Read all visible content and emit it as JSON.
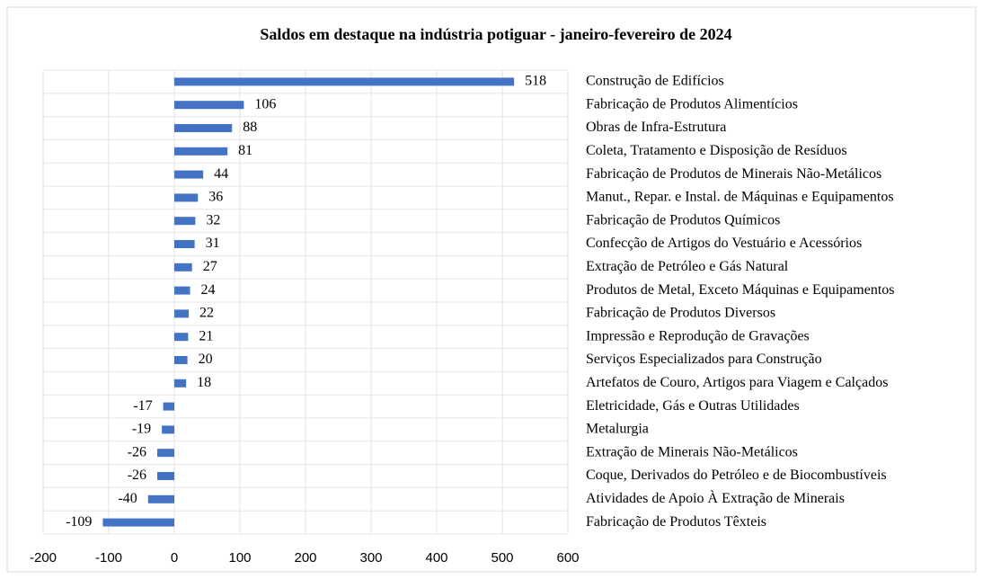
{
  "chart_data": {
    "type": "bar",
    "orientation": "horizontal",
    "title": "Saldos em destaque na indústria potiguar - janeiro-fevereiro de 2024",
    "categories": [
      "Construção de Edifícios",
      "Fabricação de Produtos Alimentícios",
      "Obras de Infra-Estrutura",
      "Coleta, Tratamento e Disposição de Resíduos",
      "Fabricação de Produtos de Minerais Não-Metálicos",
      "Manut., Repar. e Instal. de Máquinas e Equipamentos",
      "Fabricação de Produtos Químicos",
      "Confecção de Artigos do Vestuário e Acessórios",
      "Extração de Petróleo e Gás Natural",
      "Produtos de Metal, Exceto Máquinas e Equipamentos",
      "Fabricação de Produtos Diversos",
      "Impressão e Reprodução de Gravações",
      "Serviços Especializados para Construção",
      "Artefatos de Couro, Artigos para Viagem e Calçados",
      "Eletricidade, Gás e Outras Utilidades",
      "Metalurgia",
      "Extração de Minerais Não-Metálicos",
      "Coque,  Derivados do Petróleo e de Biocombustíveis",
      "Atividades de Apoio À Extração de Minerais",
      "Fabricação de Produtos Têxteis"
    ],
    "values": [
      518,
      106,
      88,
      81,
      44,
      36,
      32,
      31,
      27,
      24,
      22,
      21,
      20,
      18,
      -17,
      -19,
      -26,
      -26,
      -40,
      -109
    ],
    "color": "#4472c4",
    "xlim": [
      -200,
      600
    ],
    "xticks": [
      -200,
      -100,
      0,
      100,
      200,
      300,
      400,
      500,
      600
    ],
    "grid": true
  }
}
